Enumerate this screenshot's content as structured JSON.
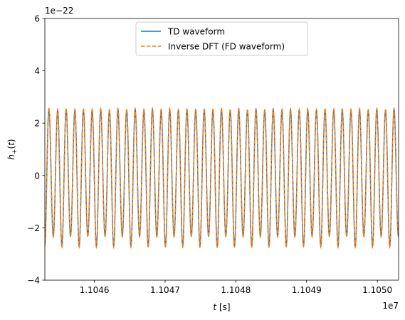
{
  "chart_data": {
    "type": "line",
    "title": "",
    "xlabel": "$t$ [s]",
    "xlabel_display": "t [s]",
    "ylabel": "$h_+(t)$",
    "ylabel_display": "h+(t)",
    "x_offset_text": "1e7",
    "y_offset_text": "1e−22",
    "xlim": [
      1.10453,
      1.10503
    ],
    "ylim": [
      -4,
      6
    ],
    "x_ticks": [
      1.1046,
      1.1047,
      1.1048,
      1.1049,
      1.105
    ],
    "x_tick_labels": [
      "1.1046",
      "1.1047",
      "1.1048",
      "1.1049",
      "1.1050"
    ],
    "y_ticks": [
      -4,
      -2,
      0,
      2,
      4,
      6
    ],
    "y_tick_labels": [
      "−4",
      "−2",
      "0",
      "2",
      "4",
      "6"
    ],
    "grid": false,
    "legend_position": "top-center",
    "waveform": {
      "approx_cycles_in_view": 41,
      "peak_amplitude": 2.75,
      "amplitude_modulation": [
        2.35,
        2.75
      ],
      "modulation_period_cycles": 2
    },
    "series": [
      {
        "name": "TD waveform",
        "color": "#1f77b4",
        "style": "solid"
      },
      {
        "name": "Inverse DFT (FD waveform)",
        "color": "#ff7f0e",
        "style": "dashed"
      }
    ]
  }
}
